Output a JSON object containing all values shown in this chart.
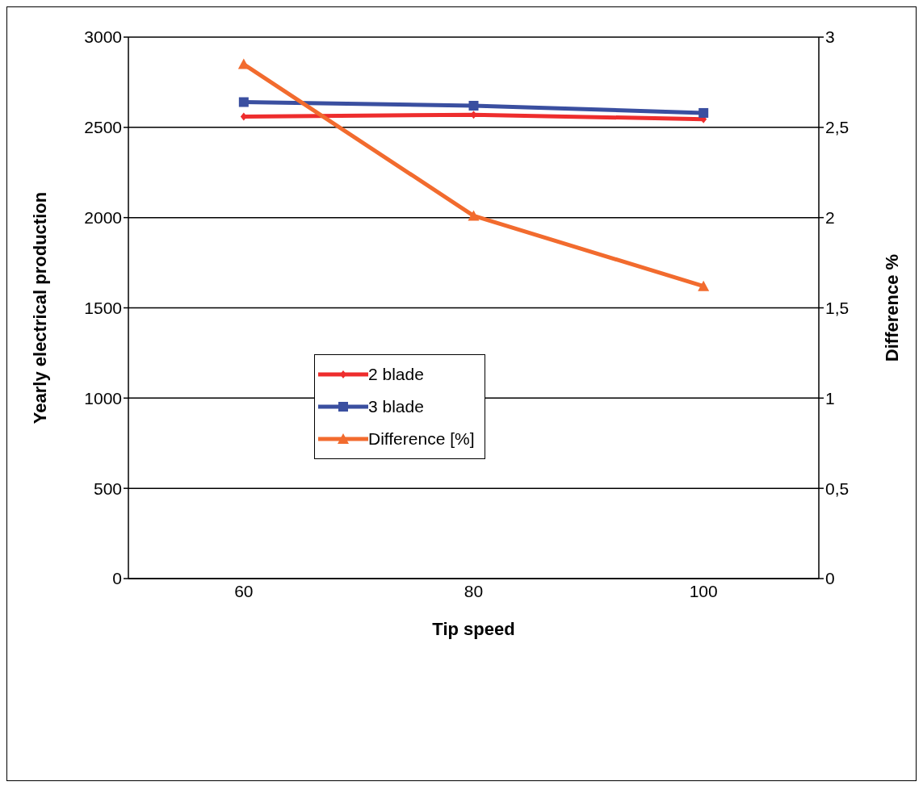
{
  "chart_data": {
    "type": "line",
    "xlabel": "Tip speed",
    "ylabel": "Yearly electrical production",
    "y2label": "Difference %",
    "categories": [
      "60",
      "80",
      "100"
    ],
    "series": [
      {
        "name": "2 blade",
        "color": "#ee2d2d",
        "values": [
          2560,
          2570,
          2545
        ],
        "marker": "diamond"
      },
      {
        "name": "3 blade",
        "color": "#3a4fa0",
        "values": [
          2640,
          2620,
          2580
        ],
        "marker": "square"
      },
      {
        "name": "Difference [%]",
        "color": "#f26b2e",
        "values": [
          2.85,
          2.01,
          1.62
        ],
        "marker": "triangle",
        "axis": "y2"
      }
    ],
    "ylim": [
      0,
      3000
    ],
    "yticks": [
      0,
      500,
      1000,
      1500,
      2000,
      2500,
      3000
    ],
    "y2lim": [
      0,
      3
    ],
    "y2ticks": [
      0,
      {
        "value": 0.5,
        "label": "0,5"
      },
      1,
      {
        "value": 1.5,
        "label": "1,5"
      },
      2,
      {
        "value": 2.5,
        "label": "2,5"
      },
      3
    ],
    "grid": "y",
    "legend": "center left",
    "line_style": "solid"
  }
}
